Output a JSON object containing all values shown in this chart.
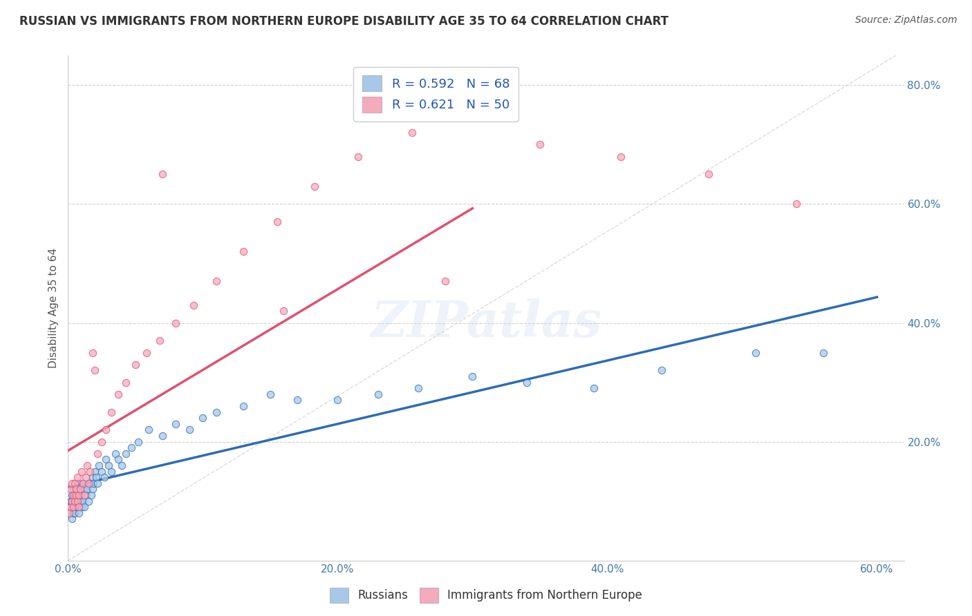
{
  "title": "RUSSIAN VS IMMIGRANTS FROM NORTHERN EUROPE DISABILITY AGE 35 TO 64 CORRELATION CHART",
  "source_text": "Source: ZipAtlas.com",
  "ylabel": "Disability Age 35 to 64",
  "xlim": [
    0.0,
    0.62
  ],
  "ylim": [
    0.0,
    0.85
  ],
  "xtick_vals": [
    0.0,
    0.2,
    0.4,
    0.6
  ],
  "ytick_vals": [
    0.2,
    0.4,
    0.6,
    0.8
  ],
  "russian_color": "#A8C8E8",
  "immigrant_color": "#F4ABBE",
  "russian_line_color": "#2B6CB8",
  "immigrant_line_color": "#E05070",
  "legend_r1": "R = 0.592   N = 68",
  "legend_r2": "R = 0.621   N = 50",
  "watermark": "ZIPatlas",
  "russians_x": [
    0.001,
    0.002,
    0.002,
    0.003,
    0.003,
    0.003,
    0.004,
    0.004,
    0.004,
    0.005,
    0.005,
    0.005,
    0.006,
    0.006,
    0.007,
    0.007,
    0.007,
    0.008,
    0.008,
    0.009,
    0.009,
    0.01,
    0.01,
    0.011,
    0.011,
    0.012,
    0.012,
    0.013,
    0.014,
    0.015,
    0.016,
    0.017,
    0.018,
    0.018,
    0.019,
    0.02,
    0.021,
    0.022,
    0.023,
    0.025,
    0.027,
    0.028,
    0.03,
    0.032,
    0.035,
    0.037,
    0.04,
    0.043,
    0.047,
    0.052,
    0.06,
    0.07,
    0.08,
    0.09,
    0.1,
    0.11,
    0.13,
    0.15,
    0.17,
    0.2,
    0.23,
    0.26,
    0.3,
    0.34,
    0.39,
    0.44,
    0.51,
    0.56
  ],
  "russians_y": [
    0.08,
    0.1,
    0.09,
    0.07,
    0.11,
    0.1,
    0.08,
    0.12,
    0.09,
    0.1,
    0.11,
    0.08,
    0.09,
    0.12,
    0.1,
    0.09,
    0.13,
    0.11,
    0.08,
    0.1,
    0.12,
    0.09,
    0.11,
    0.1,
    0.13,
    0.12,
    0.09,
    0.11,
    0.12,
    0.1,
    0.13,
    0.11,
    0.14,
    0.12,
    0.13,
    0.15,
    0.14,
    0.13,
    0.16,
    0.15,
    0.14,
    0.17,
    0.16,
    0.15,
    0.18,
    0.17,
    0.16,
    0.18,
    0.19,
    0.2,
    0.22,
    0.21,
    0.23,
    0.22,
    0.24,
    0.25,
    0.26,
    0.28,
    0.27,
    0.27,
    0.28,
    0.29,
    0.31,
    0.3,
    0.29,
    0.32,
    0.35,
    0.35
  ],
  "immigrants_x": [
    0.001,
    0.002,
    0.002,
    0.003,
    0.003,
    0.004,
    0.004,
    0.005,
    0.005,
    0.006,
    0.006,
    0.007,
    0.007,
    0.008,
    0.008,
    0.009,
    0.01,
    0.011,
    0.012,
    0.013,
    0.014,
    0.015,
    0.016,
    0.018,
    0.02,
    0.022,
    0.025,
    0.028,
    0.032,
    0.037,
    0.043,
    0.05,
    0.058,
    0.068,
    0.08,
    0.093,
    0.11,
    0.13,
    0.155,
    0.183,
    0.215,
    0.255,
    0.3,
    0.35,
    0.41,
    0.475,
    0.54,
    0.28,
    0.16,
    0.07
  ],
  "immigrants_y": [
    0.08,
    0.09,
    0.12,
    0.1,
    0.13,
    0.09,
    0.11,
    0.1,
    0.13,
    0.11,
    0.12,
    0.1,
    0.14,
    0.09,
    0.11,
    0.12,
    0.15,
    0.13,
    0.11,
    0.14,
    0.16,
    0.13,
    0.15,
    0.35,
    0.32,
    0.18,
    0.2,
    0.22,
    0.25,
    0.28,
    0.3,
    0.33,
    0.35,
    0.37,
    0.4,
    0.43,
    0.47,
    0.52,
    0.57,
    0.63,
    0.68,
    0.72,
    0.75,
    0.7,
    0.68,
    0.65,
    0.6,
    0.47,
    0.42,
    0.65
  ]
}
